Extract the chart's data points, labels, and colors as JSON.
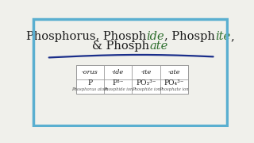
{
  "bg_color": "#f0f0eb",
  "border_color": "#5aafd0",
  "line_color": "#1a2e8a",
  "title_line1": [
    {
      "text": "Phosphorus, Phosph",
      "style": "normal",
      "color": "#1a1a1a"
    },
    {
      "text": "ide",
      "style": "italic",
      "color": "#2d6e2d"
    },
    {
      "text": ", Phosph",
      "style": "normal",
      "color": "#1a1a1a"
    },
    {
      "text": "ite",
      "style": "italic",
      "color": "#2d6e2d"
    },
    {
      "text": ",",
      "style": "normal",
      "color": "#1a1a1a"
    }
  ],
  "title_line2": [
    {
      "text": "& Phosph",
      "style": "normal",
      "color": "#1a1a1a"
    },
    {
      "text": "ate",
      "style": "italic",
      "color": "#2d6e2d"
    }
  ],
  "table_headers": [
    "-orus",
    "-ide",
    "-ite",
    "-ate"
  ],
  "table_formulas": [
    "P",
    "P³⁻",
    "PO₃³⁻",
    "PO₄³⁻"
  ],
  "table_labels": [
    "Phosphorus atom",
    "Phosphide ion",
    "Phosphite ion",
    "Phosphate ion"
  ],
  "table_bg": "#ffffff",
  "table_border": "#999999",
  "title_fontsize": 10.5,
  "header_fontsize": 5.8,
  "formula_fontsize": 6.5,
  "label_fontsize": 3.8
}
